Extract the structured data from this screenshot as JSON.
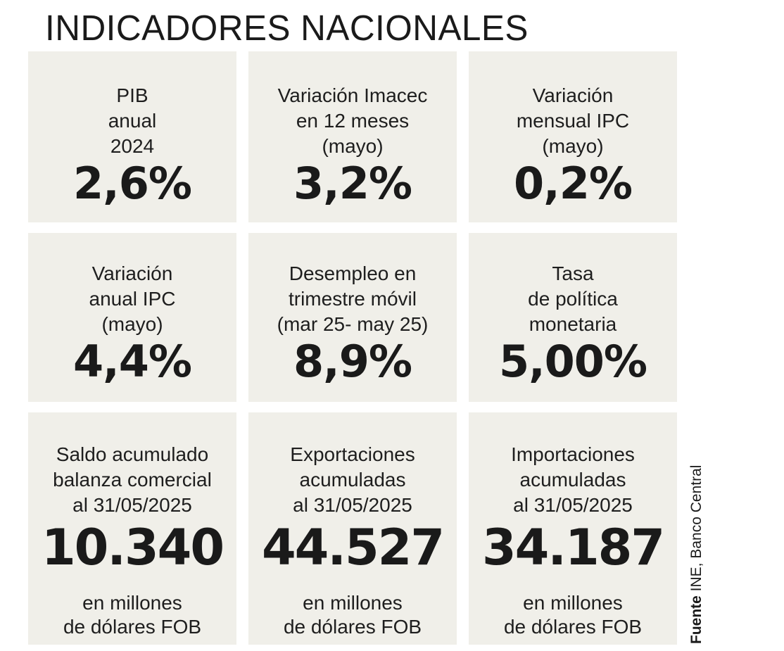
{
  "title": "INDICADORES NACIONALES",
  "cards": [
    {
      "label": [
        "PIB",
        "anual",
        "2024"
      ],
      "value": "2,6%"
    },
    {
      "label": [
        "Variación Imacec",
        "en 12 meses",
        "(mayo)"
      ],
      "value": "3,2%"
    },
    {
      "label": [
        "Variación",
        "mensual IPC",
        "(mayo)"
      ],
      "value": "0,2%"
    },
    {
      "label": [
        "Variación",
        "anual IPC",
        "(mayo)"
      ],
      "value": "4,4%"
    },
    {
      "label": [
        "Desempleo en",
        "trimestre móvil",
        "(mar 25- may 25)"
      ],
      "value": "8,9%"
    },
    {
      "label": [
        "Tasa",
        "de política",
        "monetaria"
      ],
      "value": "5,00%"
    },
    {
      "label": [
        "Saldo acumulado",
        "balanza comercial",
        "al 31/05/2025"
      ],
      "value": "10.340",
      "unit": [
        "en millones",
        "de dólares FOB"
      ]
    },
    {
      "label": [
        "Exportaciones",
        "acumuladas",
        "al 31/05/2025"
      ],
      "value": "44.527",
      "unit": [
        "en millones",
        "de dólares FOB"
      ]
    },
    {
      "label": [
        "Importaciones",
        "acumuladas",
        "al 31/05/2025"
      ],
      "value": "34.187",
      "unit": [
        "en millones",
        "de dólares FOB"
      ]
    }
  ],
  "source": {
    "label": "Fuente",
    "text": " INE, Banco Central"
  },
  "colors": {
    "card_background": "#f0efe9",
    "text": "#1a1a1a"
  }
}
